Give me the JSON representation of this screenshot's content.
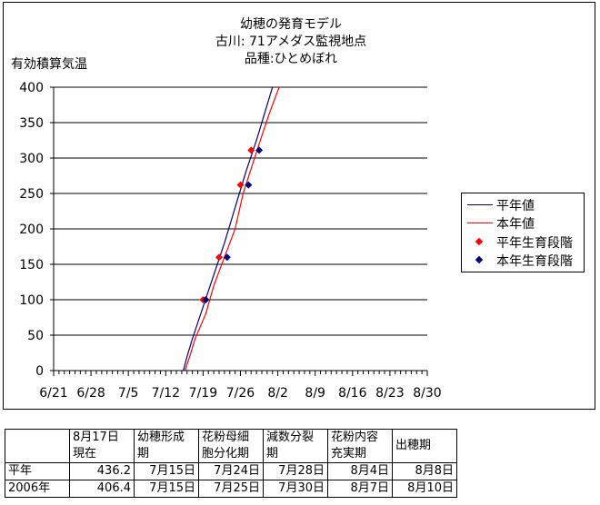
{
  "chart_data": {
    "type": "line",
    "title_lines": [
      "幼穂の発育モデル",
      "古川: 71アメダス監視地点",
      "品種:ひとめぼれ"
    ],
    "ylabel": "有効積算気温",
    "ylim": [
      0,
      400
    ],
    "yticks": [
      0,
      50,
      100,
      150,
      200,
      250,
      300,
      350,
      400
    ],
    "xticks": [
      "6/21",
      "6/28",
      "7/5",
      "7/12",
      "7/19",
      "7/26",
      "8/2",
      "8/9",
      "8/16",
      "8/23",
      "8/30"
    ],
    "grid": "horizontal",
    "legend_position": "right",
    "series": [
      {
        "name": "平年値",
        "kind": "line",
        "color": "#00007f",
        "points": [
          [
            24.3,
            0
          ],
          [
            25.0,
            20
          ],
          [
            26.0,
            45
          ],
          [
            28.0,
            90
          ],
          [
            30.0,
            135
          ],
          [
            32.0,
            180
          ],
          [
            34.0,
            230
          ],
          [
            36.0,
            280
          ],
          [
            38.0,
            325
          ],
          [
            40.0,
            375
          ],
          [
            41.2,
            405
          ]
        ]
      },
      {
        "name": "本年値",
        "kind": "line",
        "color": "#ff0000",
        "points": [
          [
            24.6,
            0
          ],
          [
            25.5,
            20
          ],
          [
            26.5,
            45
          ],
          [
            28.5,
            80
          ],
          [
            30.0,
            120
          ],
          [
            32.0,
            160
          ],
          [
            34.0,
            200
          ],
          [
            35.5,
            250
          ],
          [
            37.0,
            285
          ],
          [
            38.5,
            320
          ],
          [
            40.5,
            365
          ],
          [
            42.5,
            405
          ]
        ]
      },
      {
        "name": "平年生育段階",
        "kind": "marker",
        "color": "#ff0000",
        "points": [
          [
            28.0,
            100
          ],
          [
            31.0,
            160
          ],
          [
            35.0,
            262
          ],
          [
            37.0,
            311
          ]
        ]
      },
      {
        "name": "本年生育段階",
        "kind": "marker",
        "color": "#00007f",
        "points": [
          [
            28.5,
            100
          ],
          [
            32.5,
            160
          ],
          [
            36.5,
            262
          ],
          [
            38.5,
            311
          ]
        ]
      }
    ]
  },
  "table": {
    "headers": [
      [
        "8月17日",
        "現在"
      ],
      [
        "幼穂形成",
        "期"
      ],
      [
        "花粉母細",
        "胞分化期"
      ],
      [
        "減数分裂",
        "期"
      ],
      [
        "花粉内容",
        "充実期"
      ],
      [
        "出穂期"
      ]
    ],
    "rows": [
      {
        "label": "平年",
        "cells": [
          "436.2",
          "7月15日",
          "7月24日",
          "7月28日",
          "8月4日",
          "8月8日"
        ]
      },
      {
        "label": "2006年",
        "cells": [
          "406.4",
          "7月15日",
          "7月25日",
          "7月30日",
          "8月7日",
          "8月10日"
        ]
      }
    ]
  }
}
